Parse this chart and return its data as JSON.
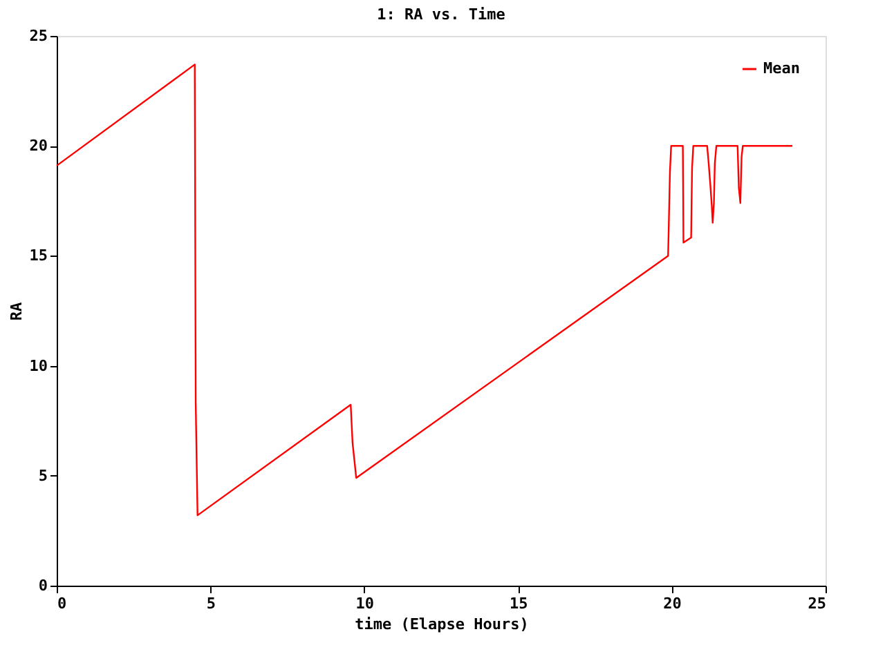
{
  "chart_data": {
    "type": "line",
    "title": "1: RA vs. Time",
    "xlabel": "time (Elapse Hours)",
    "ylabel": "RA",
    "series": [
      {
        "name": "Mean",
        "color": "#ff0000",
        "x": [
          0,
          4.49,
          4.5,
          4.52,
          4.58,
          9.56,
          9.62,
          9.74,
          19.88,
          19.9,
          19.94,
          19.98,
          20.36,
          20.37,
          20.38,
          20.63,
          20.64,
          20.66,
          20.7,
          20.75,
          21.15,
          21.2,
          21.25,
          21.3,
          21.33,
          21.37,
          21.4,
          21.45,
          22.14,
          22.18,
          22.23,
          22.27,
          22.31,
          23.92
        ],
        "values": [
          19.1,
          23.7,
          18.6,
          8.35,
          3.2,
          8.23,
          6.5,
          4.9,
          15.0,
          16.2,
          18.8,
          20.0,
          20.0,
          17.9,
          15.6,
          15.83,
          16.96,
          19.0,
          20.0,
          20.0,
          20.0,
          19.2,
          18.3,
          17.3,
          16.5,
          17.4,
          19.2,
          20.0,
          20.0,
          18.1,
          17.4,
          19.5,
          20.0,
          20.0
        ]
      }
    ],
    "xlim": [
      0,
      25
    ],
    "xticks": [
      0,
      5,
      10,
      15,
      20,
      25
    ],
    "ylim": [
      0,
      25
    ],
    "yticks": [
      0,
      5,
      10,
      15,
      20,
      25
    ],
    "grid": false,
    "legend": "top right",
    "marker": "none",
    "line_style": "solid"
  }
}
